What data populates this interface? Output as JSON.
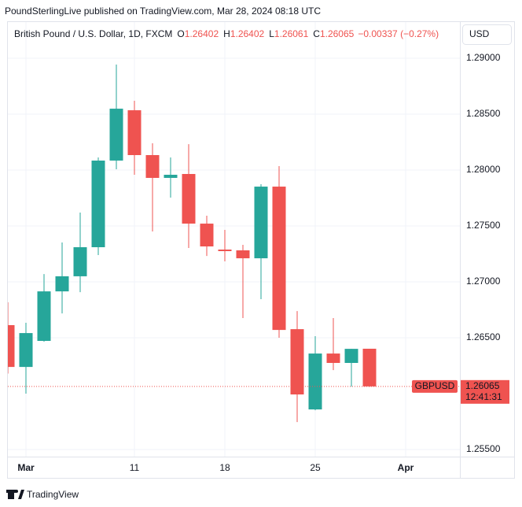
{
  "publisher": "PoundSterlingLive published on TradingView.com, Mar 28, 2024 08:18 UTC",
  "footer": "TradingView",
  "currency": "USD",
  "chart_data": {
    "type": "candlestick",
    "title": "British Pound / U.S. Dollar, 1D, FXCM",
    "legend": {
      "o_label": "O",
      "o": 1.26402,
      "h_label": "H",
      "h": 1.26402,
      "l_label": "L",
      "l": 1.26061,
      "c_label": "C",
      "c": 1.26065,
      "change": "−0.00337 (−0.27%)"
    },
    "x": [
      0,
      1,
      2,
      3,
      4,
      5,
      6,
      7,
      8,
      9,
      10,
      11,
      12,
      13,
      14,
      15,
      16,
      17,
      18,
      19,
      20
    ],
    "open": [
      1.26613,
      1.26239,
      1.26472,
      1.26915,
      1.2705,
      1.2731,
      1.28085,
      1.28535,
      1.28134,
      1.2793,
      1.27965,
      1.27521,
      1.27289,
      1.27282,
      1.27211,
      1.27852,
      1.26577,
      1.25859,
      1.26359,
      1.26275,
      1.26402
    ],
    "high": [
      1.26817,
      1.26634,
      1.2707,
      1.27352,
      1.2762,
      1.28113,
      1.28944,
      1.2862,
      1.2824,
      1.28113,
      1.28232,
      1.27592,
      1.27465,
      1.27331,
      1.27873,
      1.28035,
      1.26739,
      1.26514,
      1.26676,
      1.26401,
      1.26402
    ],
    "low": [
      1.2618,
      1.26,
      1.26465,
      1.26718,
      1.26908,
      1.2724,
      1.28007,
      1.27958,
      1.27451,
      1.27754,
      1.27303,
      1.27232,
      1.27183,
      1.26676,
      1.26845,
      1.265,
      1.25746,
      1.25852,
      1.26211,
      1.26063,
      1.26061
    ],
    "close": [
      1.26239,
      1.26542,
      1.26915,
      1.2705,
      1.2731,
      1.28085,
      1.28549,
      1.28134,
      1.2793,
      1.27958,
      1.27521,
      1.27317,
      1.27275,
      1.27211,
      1.27852,
      1.2657,
      1.25993,
      1.26359,
      1.26275,
      1.26401,
      1.26065
    ],
    "up_color": "#26a69a",
    "down_color": "#ef5350",
    "xlim": [
      0,
      25
    ],
    "xticks": [
      {
        "value": 1,
        "label": "Mar"
      },
      {
        "value": 7,
        "label": "11"
      },
      {
        "value": 12,
        "label": "18"
      },
      {
        "value": 17,
        "label": "25"
      },
      {
        "value": 22,
        "label": "Apr"
      }
    ],
    "ylim": [
      1.25437,
      1.29324
    ],
    "yticks": [
      {
        "value": 1.255,
        "label": "1.25500"
      },
      {
        "value": 1.265,
        "label": "1.26500"
      },
      {
        "value": 1.27,
        "label": "1.27000"
      },
      {
        "value": 1.275,
        "label": "1.27500"
      },
      {
        "value": 1.28,
        "label": "1.28000"
      },
      {
        "value": 1.285,
        "label": "1.28500"
      },
      {
        "value": 1.29,
        "label": "1.29000"
      }
    ],
    "grid": true,
    "last_price": {
      "symbol": "GBPUSD",
      "value": 1.26065,
      "countdown": "12:41:31",
      "color": "#ef5350"
    }
  }
}
